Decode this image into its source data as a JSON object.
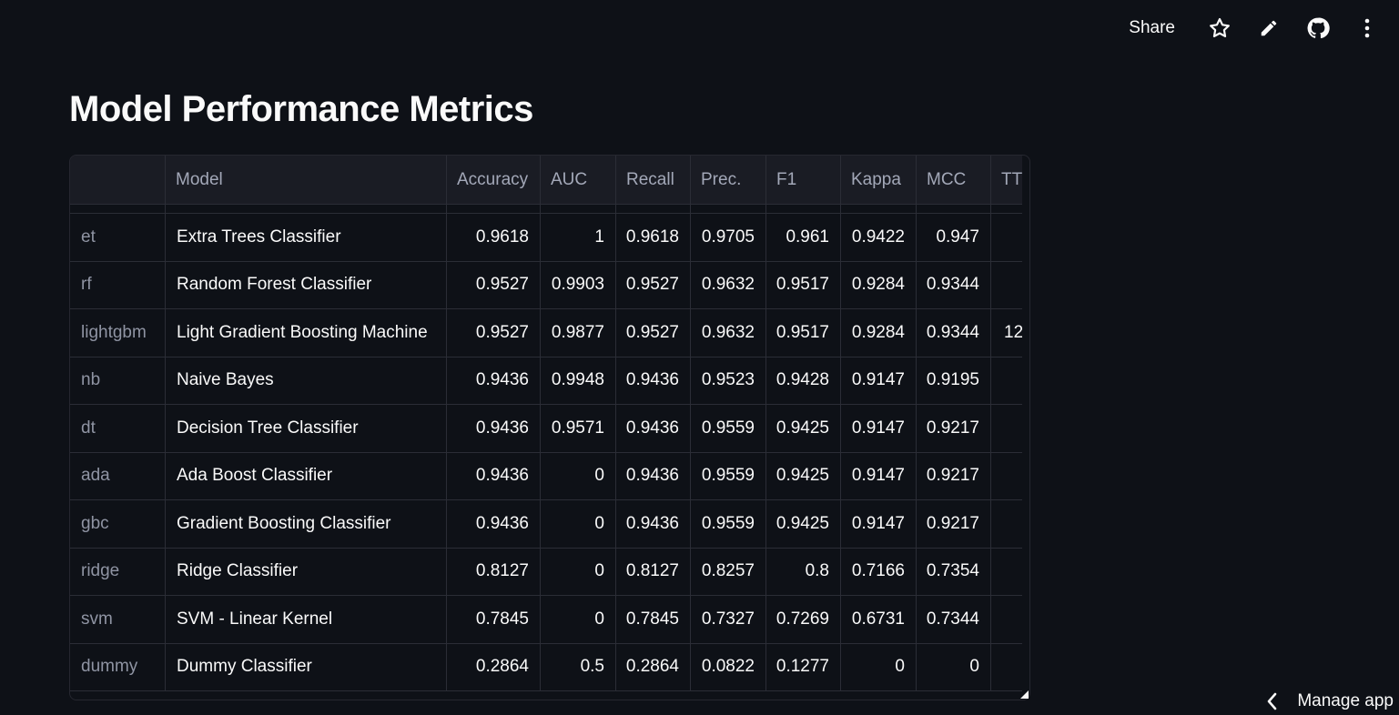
{
  "topbar": {
    "share_label": "Share",
    "icons": [
      "star-icon",
      "pencil-icon",
      "github-icon",
      "more-vert-icon"
    ]
  },
  "page": {
    "title": "Model Performance Metrics"
  },
  "table": {
    "columns": [
      "",
      "Model",
      "Accuracy",
      "AUC",
      "Recall",
      "Prec.",
      "F1",
      "Kappa",
      "MCC",
      "TT"
    ],
    "rows": [
      {
        "idx": "et",
        "model": "Extra Trees Classifier",
        "acc": "0.9618",
        "auc": "1",
        "rec": "0.9618",
        "prec": "0.9705",
        "f1": "0.961",
        "kappa": "0.9422",
        "mcc": "0.947",
        "tt": ""
      },
      {
        "idx": "rf",
        "model": "Random Forest Classifier",
        "acc": "0.9527",
        "auc": "0.9903",
        "rec": "0.9527",
        "prec": "0.9632",
        "f1": "0.9517",
        "kappa": "0.9284",
        "mcc": "0.9344",
        "tt": ""
      },
      {
        "idx": "lightgbm",
        "model": "Light Gradient Boosting Machine",
        "acc": "0.9527",
        "auc": "0.9877",
        "rec": "0.9527",
        "prec": "0.9632",
        "f1": "0.9517",
        "kappa": "0.9284",
        "mcc": "0.9344",
        "tt": "12"
      },
      {
        "idx": "nb",
        "model": "Naive Bayes",
        "acc": "0.9436",
        "auc": "0.9948",
        "rec": "0.9436",
        "prec": "0.9523",
        "f1": "0.9428",
        "kappa": "0.9147",
        "mcc": "0.9195",
        "tt": ""
      },
      {
        "idx": "dt",
        "model": "Decision Tree Classifier",
        "acc": "0.9436",
        "auc": "0.9571",
        "rec": "0.9436",
        "prec": "0.9559",
        "f1": "0.9425",
        "kappa": "0.9147",
        "mcc": "0.9217",
        "tt": ""
      },
      {
        "idx": "ada",
        "model": "Ada Boost Classifier",
        "acc": "0.9436",
        "auc": "0",
        "rec": "0.9436",
        "prec": "0.9559",
        "f1": "0.9425",
        "kappa": "0.9147",
        "mcc": "0.9217",
        "tt": ""
      },
      {
        "idx": "gbc",
        "model": "Gradient Boosting Classifier",
        "acc": "0.9436",
        "auc": "0",
        "rec": "0.9436",
        "prec": "0.9559",
        "f1": "0.9425",
        "kappa": "0.9147",
        "mcc": "0.9217",
        "tt": ""
      },
      {
        "idx": "ridge",
        "model": "Ridge Classifier",
        "acc": "0.8127",
        "auc": "0",
        "rec": "0.8127",
        "prec": "0.8257",
        "f1": "0.8",
        "kappa": "0.7166",
        "mcc": "0.7354",
        "tt": ""
      },
      {
        "idx": "svm",
        "model": "SVM - Linear Kernel",
        "acc": "0.7845",
        "auc": "0",
        "rec": "0.7845",
        "prec": "0.7327",
        "f1": "0.7269",
        "kappa": "0.6731",
        "mcc": "0.7344",
        "tt": ""
      },
      {
        "idx": "dummy",
        "model": "Dummy Classifier",
        "acc": "0.2864",
        "auc": "0.5",
        "rec": "0.2864",
        "prec": "0.0822",
        "f1": "0.1277",
        "kappa": "0",
        "mcc": "0",
        "tt": ""
      }
    ]
  },
  "footer": {
    "manage_label": "Manage app"
  }
}
